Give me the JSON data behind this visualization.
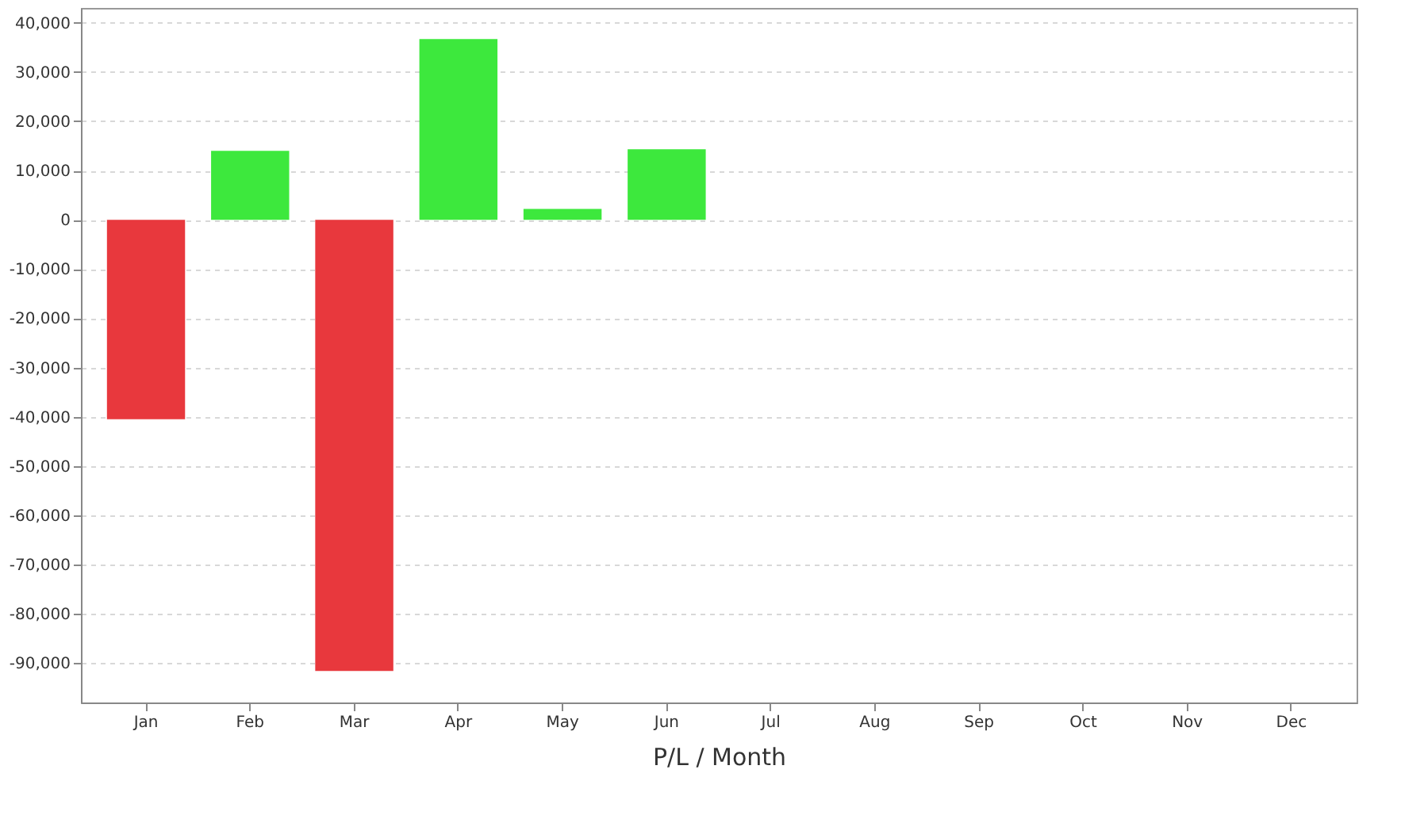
{
  "chart_data": {
    "type": "bar",
    "xlabel": "P/L / Month",
    "categories": [
      "Jan",
      "Feb",
      "Mar",
      "Apr",
      "May",
      "Jun",
      "Jul",
      "Aug",
      "Sep",
      "Oct",
      "Nov",
      "Dec"
    ],
    "values": [
      -40500,
      14000,
      -91600,
      36700,
      2200,
      14300,
      null,
      null,
      null,
      null,
      null,
      null
    ],
    "colors": [
      "#e8383d",
      "#3de83d",
      "#e8383d",
      "#3de83d",
      "#3de83d",
      "#3de83d",
      null,
      null,
      null,
      null,
      null,
      null
    ],
    "ylim": [
      -98000,
      43000
    ],
    "yticks": [
      {
        "value": -90000,
        "label": "-90,000"
      },
      {
        "value": -80000,
        "label": "-80,000"
      },
      {
        "value": -70000,
        "label": "-70,000"
      },
      {
        "value": -60000,
        "label": "-60,000"
      },
      {
        "value": -50000,
        "label": "-50,000"
      },
      {
        "value": -40000,
        "label": "-40,000"
      },
      {
        "value": -30000,
        "label": "-30,000"
      },
      {
        "value": -20000,
        "label": "-20,000"
      },
      {
        "value": -10000,
        "label": "-10,000"
      },
      0,
      {
        "value": 10000,
        "label": "10,000"
      },
      {
        "value": 20000,
        "label": "20,000"
      },
      {
        "value": 30000,
        "label": "30,000"
      },
      {
        "value": 40000,
        "label": "40,000"
      }
    ],
    "grid": "y"
  }
}
